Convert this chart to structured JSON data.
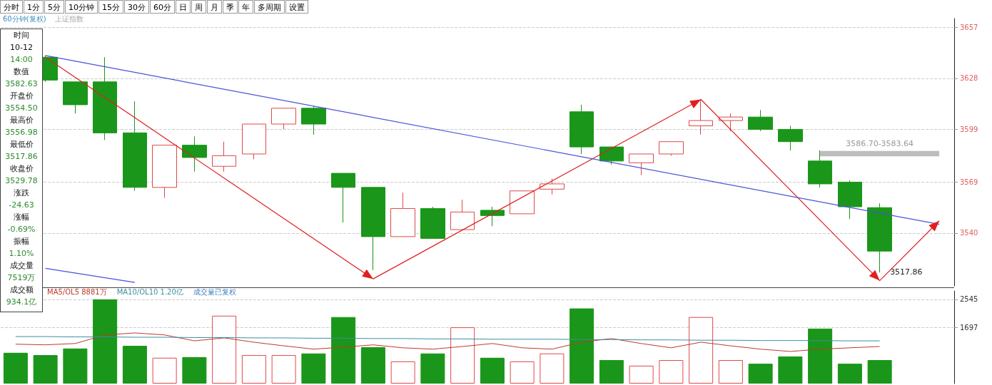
{
  "chart_data": [
    {
      "type": "candlestick",
      "title": "60分钟(复权)",
      "subtitle": "上证指数",
      "categories": [
        null,
        null,
        null,
        null,
        null,
        null,
        null,
        null,
        null,
        null,
        null,
        null,
        null,
        null,
        null,
        null,
        null,
        null,
        null,
        null,
        null,
        null,
        null,
        null,
        null,
        null,
        null,
        null,
        null,
        null,
        null,
        null
      ],
      "ohlc": [
        null,
        [
          3640,
          3641,
          3626,
          3627
        ],
        [
          3626,
          3626,
          3608,
          3613
        ],
        [
          3626,
          3640,
          3593,
          3597
        ],
        [
          3597,
          3615,
          3564,
          3566
        ],
        [
          3566,
          3590,
          3560,
          3590
        ],
        [
          3590,
          3595,
          3575,
          3583
        ],
        [
          3578,
          3592,
          3575,
          3584
        ],
        [
          3585,
          3602,
          3582,
          3602
        ],
        [
          3602,
          3611,
          3599,
          3611
        ],
        [
          3611,
          3612,
          3596,
          3602
        ],
        [
          3574,
          3574,
          3546,
          3566
        ],
        [
          3566,
          3566,
          3519,
          3538
        ],
        [
          3538,
          3563,
          3538,
          3554
        ],
        [
          3554,
          3555,
          3537,
          3537
        ],
        [
          3542,
          3559,
          3542,
          3552
        ],
        [
          3553,
          3555,
          3544,
          3550
        ],
        [
          3551,
          3564,
          3551,
          3564
        ],
        [
          3565,
          3571,
          3562,
          3568
        ],
        [
          3609,
          3613,
          3585,
          3589
        ],
        [
          3589,
          3589,
          3579,
          3581
        ],
        [
          3580,
          3585,
          3573,
          3585
        ],
        [
          3585,
          3592,
          3584,
          3592
        ],
        [
          3601,
          3616,
          3596,
          3604
        ],
        [
          3604,
          3608,
          3598,
          3606
        ],
        [
          3606,
          3610,
          3598,
          3599
        ],
        [
          3599,
          3601,
          3587,
          3592
        ],
        [
          3581,
          3587,
          3566,
          3568
        ],
        [
          3569,
          3570,
          3548,
          3555
        ],
        [
          3554.5,
          3556.98,
          3517.86,
          3529.78
        ],
        null,
        null
      ],
      "colors": [
        null,
        "#1a961a",
        "#1a961a",
        "#1a961a",
        "#1a961a",
        "#e04848",
        "#1a961a",
        "#e04848",
        "#e04848",
        "#e04848",
        "#1a961a",
        "#1a961a",
        "#1a961a",
        "#e04848",
        "#1a961a",
        "#e04848",
        "#1a961a",
        "#e04848",
        "#e04848",
        "#1a961a",
        "#1a961a",
        "#e04848",
        "#e04848",
        "#e04848",
        "#e04848",
        "#1a961a",
        "#1a961a",
        "#1a961a",
        "#1a961a",
        "#1a961a",
        null,
        null
      ],
      "series": [
        {
          "type": "line",
          "color": "#e02020",
          "values": [
            null,
            3640,
            null,
            null,
            null,
            null,
            null,
            null,
            null,
            null,
            null,
            null,
            3514,
            null,
            null,
            null,
            null,
            null,
            null,
            null,
            null,
            null,
            null,
            3616,
            null,
            null,
            null,
            null,
            null,
            3513,
            null,
            3547
          ]
        },
        {
          "type": "line",
          "color": "#4a52d8",
          "values": [
            null,
            3641,
            null,
            null,
            null,
            null,
            null,
            null,
            null,
            null,
            null,
            null,
            null,
            null,
            null,
            null,
            null,
            null,
            null,
            null,
            null,
            null,
            null,
            null,
            null,
            null,
            null,
            null,
            null,
            null,
            null,
            3545
          ]
        },
        {
          "type": "line",
          "color": "#4a52d8",
          "values": [
            null,
            3520,
            null,
            null,
            3512,
            null,
            null,
            null,
            null,
            null,
            null,
            null,
            null,
            null,
            null,
            null,
            null,
            null,
            null,
            null,
            null,
            null,
            null,
            null,
            null,
            null,
            null,
            null,
            null,
            null,
            null,
            null
          ]
        }
      ],
      "ylim": [
        3510,
        3662
      ],
      "yticks": [
        3540,
        3569,
        3599,
        3628,
        3657
      ],
      "grid": "y",
      "tick_labels": "y",
      "bands": [
        {
          "axis": "y",
          "from": 3583.64,
          "to": 3586.7,
          "label": "3586.70-3583.64",
          "color": "#bdbdbd"
        }
      ],
      "annotations": [
        "3517.86"
      ]
    },
    {
      "type": "bar",
      "categories": [
        null,
        null,
        null,
        null,
        null,
        null,
        null,
        null,
        null,
        null,
        null,
        null,
        null,
        null,
        null,
        null,
        null,
        null,
        null,
        null,
        null,
        null,
        null,
        null,
        null,
        null,
        null,
        null,
        null,
        null,
        null,
        null
      ],
      "series": [
        {
          "type": "bar",
          "colors": [
            "#1a961a",
            "#1a961a",
            "#1a961a",
            "#1a961a",
            "#1a961a",
            "#e04848",
            "#1a961a",
            "#e04848",
            "#e04848",
            "#e04848",
            "#1a961a",
            "#1a961a",
            "#1a961a",
            "#e04848",
            "#1a961a",
            "#e04848",
            "#1a961a",
            "#e04848",
            "#e04848",
            "#1a961a",
            "#1a961a",
            "#e04848",
            "#e04848",
            "#e04848",
            "#e04848",
            "#1a961a",
            "#1a961a",
            "#1a961a",
            "#1a961a",
            "#1a961a",
            null,
            null
          ],
          "values": [
            930,
            860,
            1060,
            2545,
            1140,
            780,
            800,
            2050,
            860,
            860,
            910,
            2010,
            1100,
            670,
            910,
            1700,
            780,
            670,
            910,
            2270,
            710,
            540,
            710,
            2010,
            710,
            600,
            820,
            1660,
            600,
            710,
            null,
            null
          ]
        },
        {
          "type": "line",
          "color": "#c0392b",
          "values": [
            1190,
            1170,
            1210,
            1470,
            1530,
            1470,
            1290,
            1380,
            1250,
            1140,
            1040,
            1100,
            1170,
            1080,
            1040,
            1120,
            1210,
            1080,
            1040,
            1250,
            1360,
            1210,
            1080,
            1250,
            1140,
            1040,
            970,
            1040,
            1080,
            1120,
            null,
            null
          ]
        },
        {
          "type": "line",
          "color": "#3a8fa0",
          "values": [
            1420,
            1420,
            1410,
            1410,
            1400,
            1400,
            1390,
            1390,
            1380,
            1380,
            1370,
            1370,
            1360,
            1360,
            1350,
            1350,
            1340,
            1340,
            1340,
            1330,
            1330,
            1320,
            1320,
            1310,
            1310,
            1300,
            1300,
            1300,
            1290,
            1290,
            null,
            null
          ]
        }
      ],
      "ylim": [
        0,
        2800
      ],
      "yticks": [
        1697,
        2545
      ],
      "grid": "y",
      "tick_labels": "y",
      "annotations": [
        "MA5/OL5 8881万",
        "MA10/OL10 1.20亿",
        "成交量已复权"
      ]
    },
    {
      "type": "other",
      "annotations": [
        "时间",
        "10-12",
        "14:00",
        "数值",
        "3582.63",
        "开盘价",
        "3554.50",
        "最高价",
        "3556.98",
        "最低价",
        "3517.86",
        "收盘价",
        "3529.78",
        "涨跌",
        "-24.63",
        "涨幅",
        "-0.69%",
        "振幅",
        "1.10%",
        "成交量",
        "7519万",
        "成交额",
        "934.1亿"
      ]
    },
    {
      "type": "other",
      "annotations": [
        "分时",
        "1分",
        "5分",
        "10分钟",
        "15分",
        "30分",
        "60分",
        "日",
        "周",
        "月",
        "季",
        "年",
        "多周期",
        "设置"
      ]
    }
  ]
}
